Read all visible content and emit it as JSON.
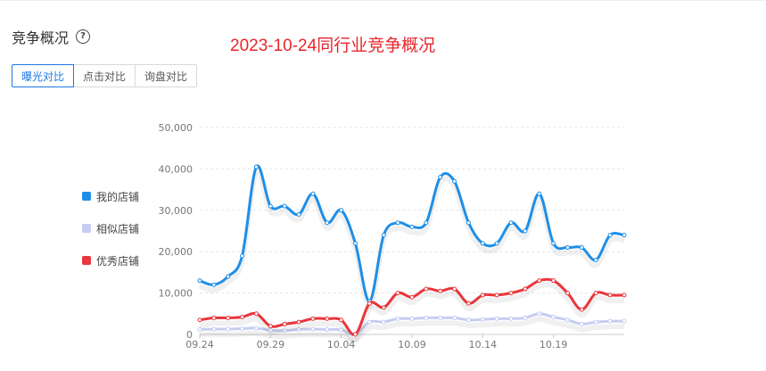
{
  "header": {
    "title": "竞争概况",
    "help_icon": "question-circle-icon"
  },
  "annotation": "2023-10-24同行业竞争概况",
  "tabs": [
    {
      "label": "曝光对比",
      "active": true
    },
    {
      "label": "点击对比",
      "active": false
    },
    {
      "label": "询盘对比",
      "active": false
    }
  ],
  "legend": [
    {
      "name": "我的店铺",
      "color": "#1e8fe8"
    },
    {
      "name": "相似店铺",
      "color": "#c5cdf2"
    },
    {
      "name": "优秀店铺",
      "color": "#e8363c"
    }
  ],
  "chart_data": {
    "type": "line",
    "x_tick_labels": [
      "09.24",
      "09.29",
      "10.04",
      "10.09",
      "10.14",
      "10.19"
    ],
    "x": [
      "09.24",
      "09.25",
      "09.26",
      "09.27",
      "09.28",
      "09.29",
      "09.30",
      "10.01",
      "10.02",
      "10.03",
      "10.04",
      "10.05",
      "10.06",
      "10.07",
      "10.08",
      "10.09",
      "10.10",
      "10.11",
      "10.12",
      "10.13",
      "10.14",
      "10.15",
      "10.16",
      "10.17",
      "10.18",
      "10.19",
      "10.20",
      "10.21",
      "10.22",
      "10.23",
      "10.24"
    ],
    "ylim": [
      0,
      50000
    ],
    "y_ticks": [
      "0",
      "10,000",
      "20,000",
      "30,000",
      "40,000",
      "50,000"
    ],
    "grid": true,
    "legend_position": "left",
    "series": [
      {
        "name": "我的店铺",
        "color": "#1e8fe8",
        "values": [
          13000,
          12000,
          14000,
          19000,
          40500,
          31000,
          31000,
          29000,
          34000,
          27000,
          30000,
          22000,
          8000,
          24000,
          27000,
          26000,
          27000,
          38000,
          37000,
          27000,
          22000,
          22000,
          27000,
          25000,
          34000,
          22000,
          21000,
          21000,
          18000,
          24000,
          24000
        ]
      },
      {
        "name": "相似店铺",
        "color": "#c5cdf2",
        "values": [
          1200,
          1300,
          1300,
          1400,
          1500,
          1000,
          900,
          1200,
          1300,
          1200,
          1100,
          0,
          3000,
          3000,
          3800,
          3800,
          4000,
          4000,
          4000,
          3500,
          3600,
          3800,
          3800,
          4000,
          5000,
          4200,
          3500,
          2500,
          3000,
          3200,
          3200
        ]
      },
      {
        "name": "优秀店铺",
        "color": "#e8363c",
        "values": [
          3500,
          4000,
          4000,
          4200,
          5000,
          2000,
          2500,
          3000,
          3800,
          3800,
          3500,
          0,
          7500,
          6500,
          10000,
          9000,
          11000,
          10500,
          11000,
          7500,
          9500,
          9500,
          10000,
          11000,
          13000,
          13000,
          10000,
          6000,
          10000,
          9500,
          9500
        ]
      }
    ]
  }
}
